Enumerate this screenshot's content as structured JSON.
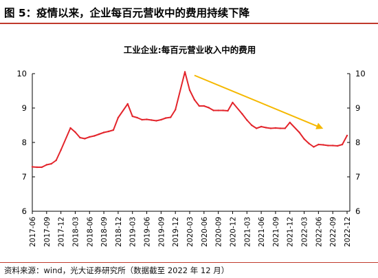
{
  "figure": {
    "title": "图 5：疫情以来，企业每百元营收中的费用持续下降",
    "source": "资料来源：wind，光大证券研究所（数据截至 2022 年 12 月）"
  },
  "chart_data": {
    "type": "line",
    "title": "工业企业:每百元营业收入中的费用",
    "xlabel": "",
    "ylabel": "",
    "ylim": [
      6,
      10
    ],
    "yticks": [
      "6",
      "7",
      "8",
      "9",
      "10"
    ],
    "y2ticks": [
      "6",
      "7",
      "8",
      "9",
      "10"
    ],
    "grid": false,
    "x_tick_labels": [
      "2017-06",
      "2017-09",
      "2017-12",
      "2018-03",
      "2018-06",
      "2018-09",
      "2018-12",
      "2019-03",
      "2019-06",
      "2019-09",
      "2019-12",
      "2020-03",
      "2020-06",
      "2020-09",
      "2020-12",
      "2021-03",
      "2021-06",
      "2021-09",
      "2021-12",
      "2022-03",
      "2022-06",
      "2022-09",
      "2022-12"
    ],
    "series": [
      {
        "color": "#e3242b",
        "x": [
          "2017-06",
          "2017-07",
          "2017-08",
          "2017-09",
          "2017-10",
          "2017-11",
          "2017-12",
          "2018-02",
          "2018-03",
          "2018-04",
          "2018-05",
          "2018-06",
          "2018-07",
          "2018-08",
          "2018-09",
          "2018-10",
          "2018-11",
          "2018-12",
          "2019-02",
          "2019-03",
          "2019-04",
          "2019-05",
          "2019-06",
          "2019-07",
          "2019-08",
          "2019-09",
          "2019-10",
          "2019-11",
          "2019-12",
          "2020-02",
          "2020-03",
          "2020-04",
          "2020-05",
          "2020-06",
          "2020-07",
          "2020-08",
          "2020-09",
          "2020-10",
          "2020-11",
          "2020-12",
          "2021-02",
          "2021-03",
          "2021-04",
          "2021-05",
          "2021-06",
          "2021-07",
          "2021-08",
          "2021-09",
          "2021-10",
          "2021-11",
          "2021-12",
          "2022-02",
          "2022-03",
          "2022-04",
          "2022-05",
          "2022-06",
          "2022-07",
          "2022-08",
          "2022-09",
          "2022-10",
          "2022-11",
          "2022-12"
        ],
        "values": [
          7.29,
          7.28,
          7.28,
          7.35,
          7.38,
          7.48,
          7.78,
          8.42,
          8.3,
          8.14,
          8.11,
          8.16,
          8.19,
          8.24,
          8.29,
          8.32,
          8.36,
          8.72,
          9.12,
          8.76,
          8.72,
          8.66,
          8.67,
          8.65,
          8.63,
          8.66,
          8.71,
          8.73,
          8.95,
          10.05,
          9.52,
          9.24,
          9.06,
          9.06,
          9.01,
          8.93,
          8.93,
          8.93,
          8.92,
          9.16,
          8.83,
          8.65,
          8.5,
          8.41,
          8.46,
          8.43,
          8.41,
          8.42,
          8.41,
          8.41,
          8.58,
          8.29,
          8.1,
          7.97,
          7.87,
          7.94,
          7.93,
          7.91,
          7.91,
          7.9,
          7.94,
          8.2
        ]
      }
    ],
    "annotations": [
      {
        "type": "trend-arrow",
        "color": "#f5b800",
        "from": [
          "2020-04",
          9.95
        ],
        "to": [
          "2022-07",
          8.4
        ]
      }
    ]
  }
}
